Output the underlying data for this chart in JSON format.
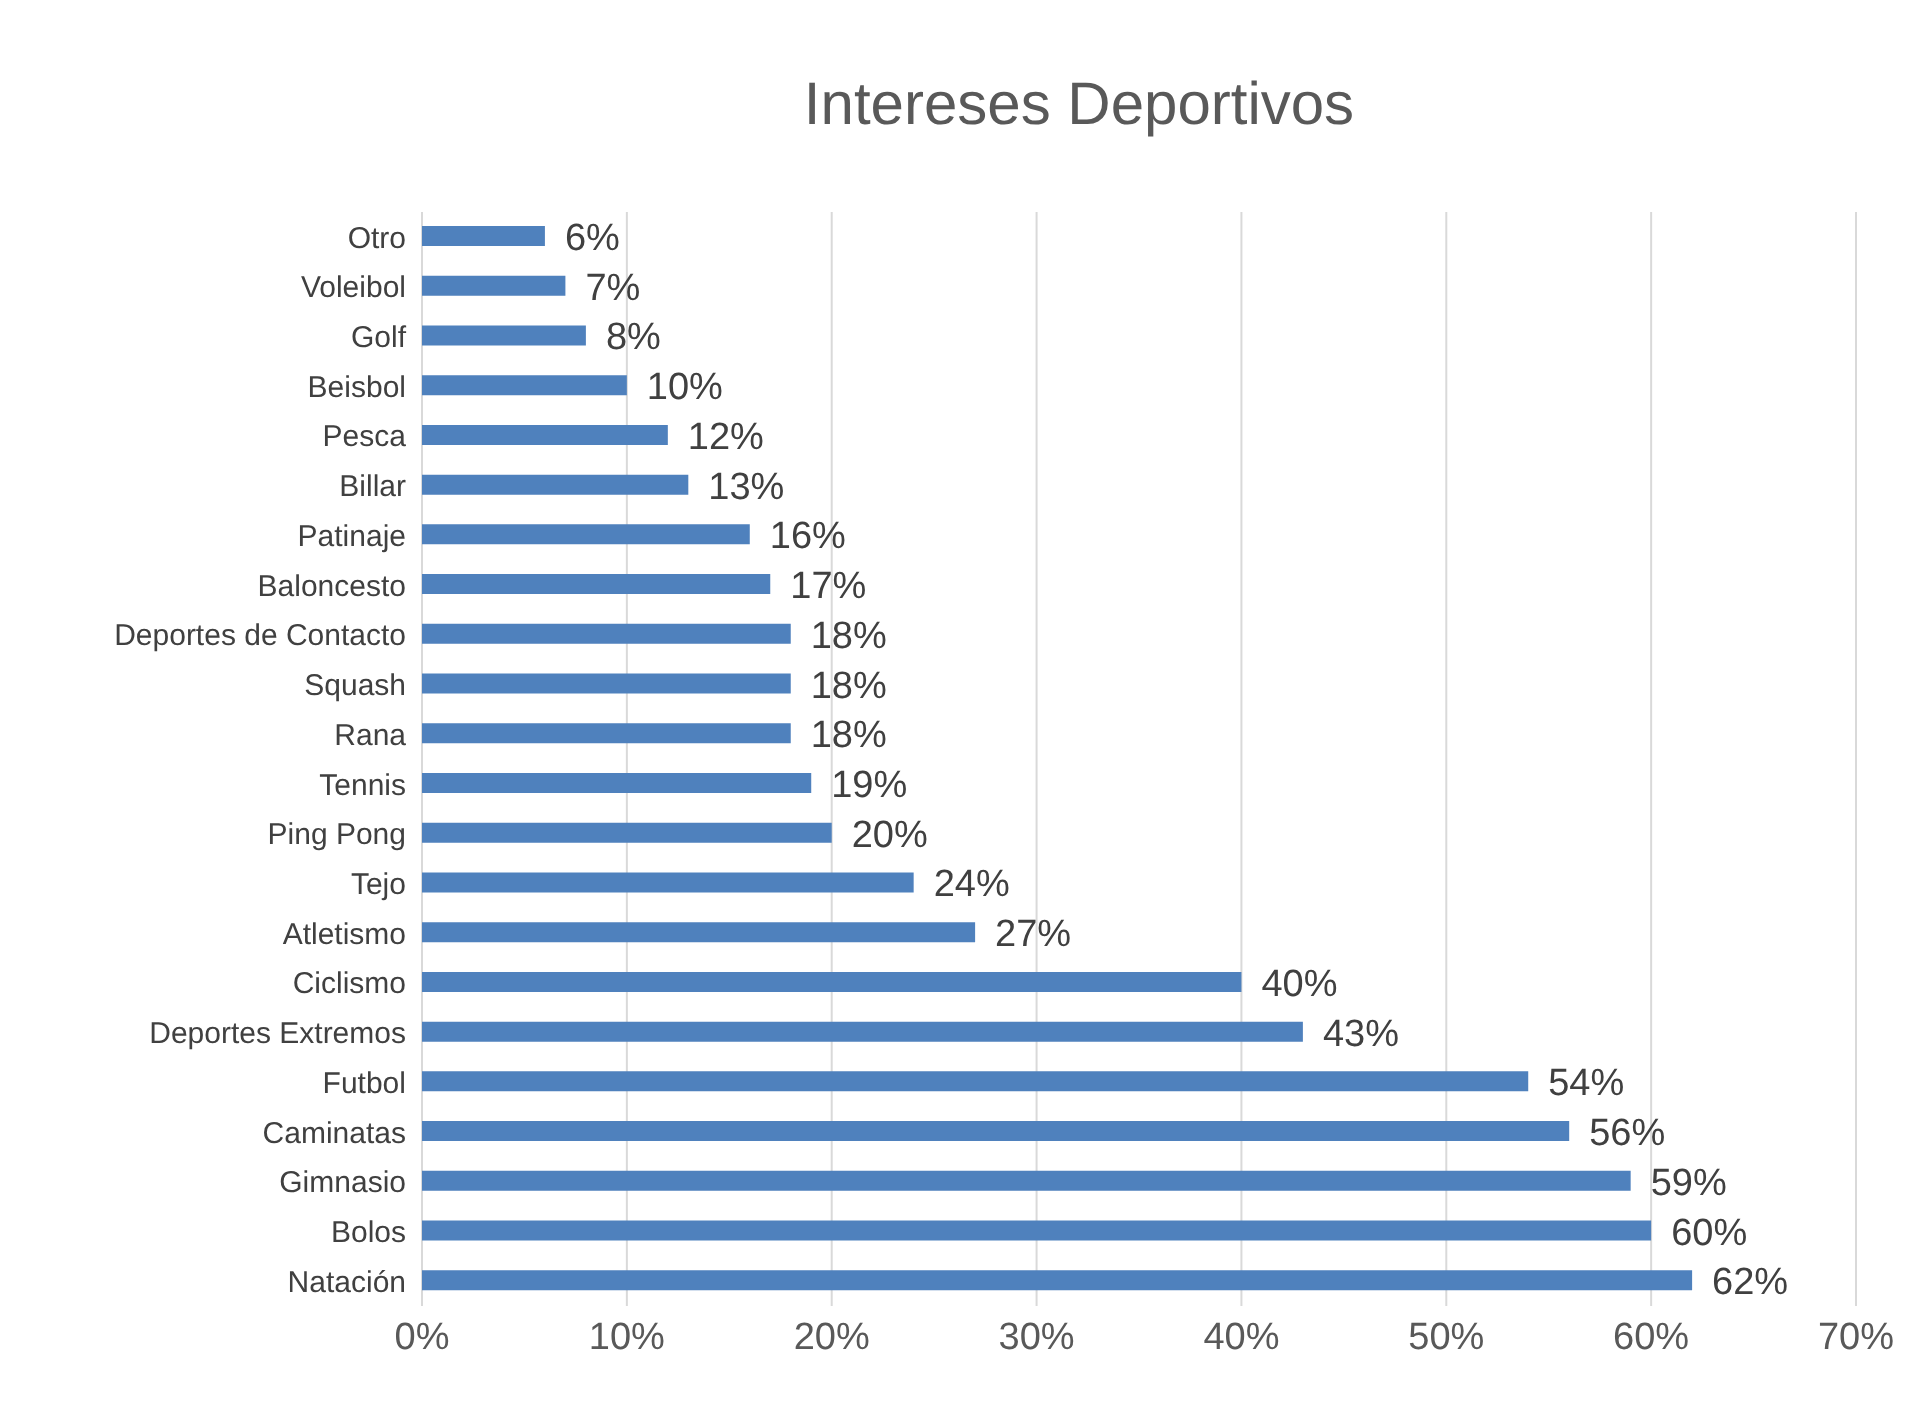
{
  "chart_data": {
    "type": "bar",
    "orientation": "horizontal",
    "title": "Intereses Deportivos",
    "categories": [
      "Otro",
      "Voleibol",
      "Golf",
      "Beisbol",
      "Pesca",
      "Billar",
      "Patinaje",
      "Baloncesto",
      "Deportes de Contacto",
      "Squash",
      "Rana",
      "Tennis",
      "Ping Pong",
      "Tejo",
      "Atletismo",
      "Ciclismo",
      "Deportes Extremos",
      "Futbol",
      "Caminatas",
      "Gimnasio",
      "Bolos",
      "Natación"
    ],
    "values": [
      6,
      7,
      8,
      10,
      12,
      13,
      16,
      17,
      18,
      18,
      18,
      19,
      20,
      24,
      27,
      40,
      43,
      54,
      56,
      59,
      60,
      62
    ],
    "value_labels": [
      "6%",
      "7%",
      "8%",
      "10%",
      "12%",
      "13%",
      "16%",
      "17%",
      "18%",
      "18%",
      "18%",
      "19%",
      "20%",
      "24%",
      "27%",
      "40%",
      "43%",
      "54%",
      "56%",
      "59%",
      "60%",
      "62%"
    ],
    "color": "#4f81bd",
    "xlim": [
      0,
      70
    ],
    "xticks": [
      {
        "value": 0,
        "label": "0%"
      },
      {
        "value": 10,
        "label": "10%"
      },
      {
        "value": 20,
        "label": "20%"
      },
      {
        "value": 30,
        "label": "30%"
      },
      {
        "value": 40,
        "label": "40%"
      },
      {
        "value": 50,
        "label": "50%"
      },
      {
        "value": 60,
        "label": "60%"
      },
      {
        "value": 70,
        "label": "70%"
      }
    ],
    "grid": "x",
    "legend": false
  }
}
